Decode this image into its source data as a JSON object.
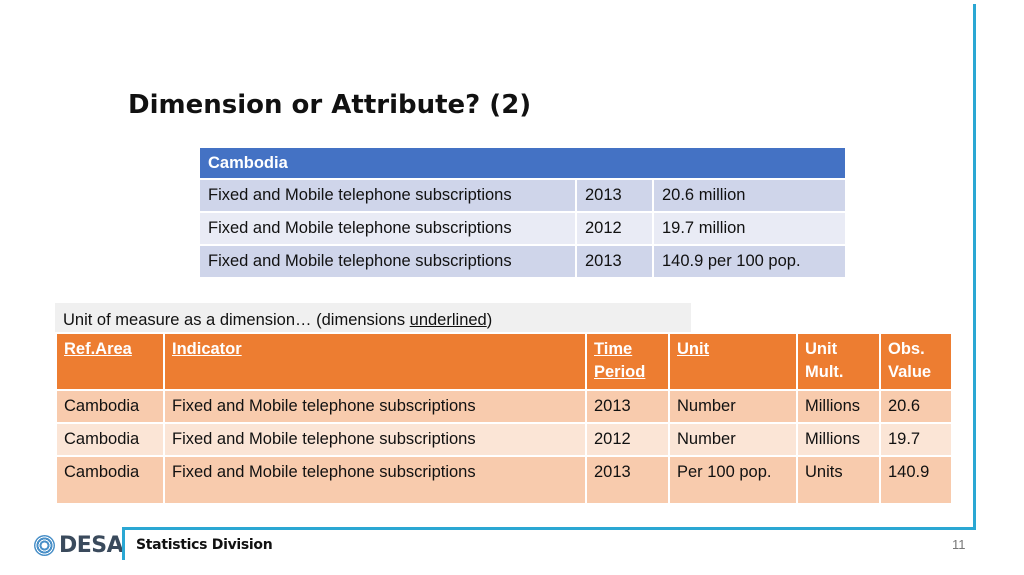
{
  "slide": {
    "title": "Dimension or Attribute? (2)",
    "page_number": "11"
  },
  "table1": {
    "header": "Cambodia",
    "rows": [
      [
        "Fixed and Mobile telephone subscriptions",
        "2013",
        "20.6 million"
      ],
      [
        "Fixed and Mobile telephone subscriptions",
        "2012",
        "19.7 million"
      ],
      [
        "Fixed and Mobile telephone subscriptions",
        "2013",
        "140.9 per 100 pop."
      ]
    ]
  },
  "caption": {
    "before": "Unit of measure as a dimension… (dimensions ",
    "underlined": "underlined",
    "after": ")"
  },
  "table2": {
    "headers": [
      "Ref.Area",
      "Indicator",
      "Time Period",
      "Unit",
      "Unit Mult.",
      "Obs. Value"
    ],
    "rows": [
      [
        "Cambodia",
        "Fixed and Mobile telephone subscriptions",
        "2013",
        "Number",
        "Millions",
        "20.6"
      ],
      [
        "Cambodia",
        "Fixed and Mobile telephone subscriptions",
        "2012",
        "Number",
        "Millions",
        "19.7"
      ],
      [
        "Cambodia",
        "Fixed and Mobile telephone subscriptions",
        "2013",
        "Per 100 pop.",
        "Units",
        "140.9"
      ]
    ]
  },
  "footer": {
    "logo_text": "DESA",
    "logo_icon": "un-globe-icon",
    "division": "Statistics Division"
  },
  "colors": {
    "accent_rule": "#2aa7d3",
    "table1_header": "#4472c4",
    "table2_header": "#ed7d31"
  }
}
